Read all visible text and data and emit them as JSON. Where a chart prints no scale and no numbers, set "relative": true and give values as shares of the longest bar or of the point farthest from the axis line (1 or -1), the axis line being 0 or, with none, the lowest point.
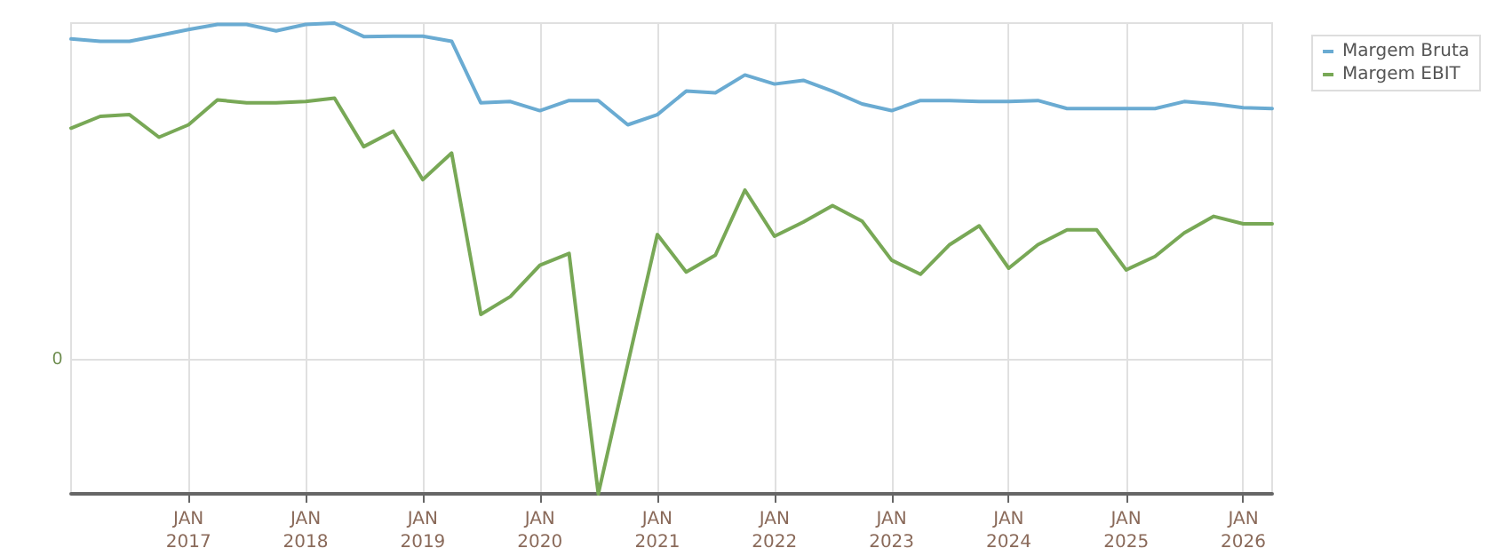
{
  "chart_data": {
    "type": "line",
    "relative": true,
    "x": [
      "2016-01",
      "2016-04",
      "2016-07",
      "2016-10",
      "2017-01",
      "2017-04",
      "2017-07",
      "2017-10",
      "2018-01",
      "2018-04",
      "2018-07",
      "2018-10",
      "2019-01",
      "2019-04",
      "2019-07",
      "2019-10",
      "2020-01",
      "2020-04",
      "2020-07",
      "2020-10",
      "2021-01",
      "2021-04",
      "2021-07",
      "2021-10",
      "2022-01",
      "2022-04",
      "2022-07",
      "2022-10",
      "2023-01",
      "2023-04",
      "2023-07",
      "2023-10",
      "2024-01",
      "2024-04",
      "2024-07",
      "2024-10",
      "2025-01",
      "2025-04",
      "2025-07",
      "2025-10",
      "2026-01",
      "2026-04"
    ],
    "series": [
      {
        "name": "Margem Bruta",
        "color": "#6aabd2",
        "values": [
          0.953,
          0.946,
          0.946,
          0.963,
          0.981,
          0.996,
          0.996,
          0.977,
          0.996,
          1,
          0.96,
          0.961,
          0.961,
          0.946,
          0.763,
          0.767,
          0.74,
          0.77,
          0.77,
          0.698,
          0.728,
          0.798,
          0.793,
          0.846,
          0.819,
          0.83,
          0.798,
          0.76,
          0.74,
          0.77,
          0.77,
          0.767,
          0.767,
          0.77,
          0.746,
          0.746,
          0.746,
          0.746,
          0.767,
          0.76,
          0.749,
          0.746
        ]
      },
      {
        "name": "Margem EBIT",
        "color": "#78a856",
        "values": [
          0.688,
          0.723,
          0.728,
          0.661,
          0.698,
          0.772,
          0.763,
          0.763,
          0.767,
          0.777,
          0.633,
          0.679,
          0.535,
          0.614,
          0.135,
          0.188,
          0.281,
          0.316,
          -0.398,
          -0.012,
          0.372,
          0.261,
          0.311,
          0.504,
          0.367,
          0.409,
          0.458,
          0.412,
          0.296,
          0.254,
          0.342,
          0.398,
          0.272,
          0.342,
          0.386,
          0.386,
          0.267,
          0.307,
          0.377,
          0.426,
          0.404,
          0.404
        ]
      }
    ],
    "xlim": [
      "2016-01",
      "2026-04"
    ],
    "xticks": [
      {
        "value": "2017-01",
        "label": "JAN\n2017"
      },
      {
        "value": "2018-01",
        "label": "JAN\n2018"
      },
      {
        "value": "2019-01",
        "label": "JAN\n2019"
      },
      {
        "value": "2020-01",
        "label": "JAN\n2020"
      },
      {
        "value": "2021-01",
        "label": "JAN\n2021"
      },
      {
        "value": "2022-01",
        "label": "JAN\n2022"
      },
      {
        "value": "2023-01",
        "label": "JAN\n2023"
      },
      {
        "value": "2024-01",
        "label": "JAN\n2024"
      },
      {
        "value": "2025-01",
        "label": "JAN\n2025"
      },
      {
        "value": "2026-01",
        "label": "JAN\n2026"
      }
    ],
    "ref_lines": [
      {
        "axis": "y",
        "value": 0,
        "label": "0",
        "color": "#e0e0e0"
      }
    ],
    "grid": "x",
    "legend": "top right",
    "marker": "none",
    "line_style": "solid"
  }
}
